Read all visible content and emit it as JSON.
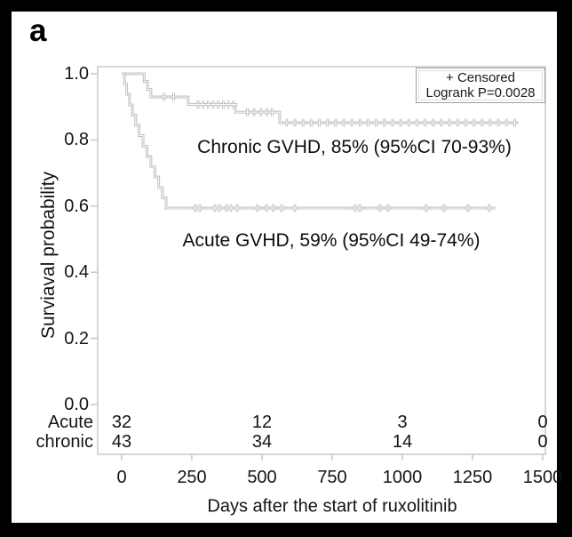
{
  "figure": {
    "panel_label": "a"
  },
  "chart_data": {
    "type": "line",
    "subtype": "kaplan-meier-survival",
    "title": "",
    "xlabel": "Days after the start of ruxolitinib",
    "ylabel": "Surviaval probability",
    "xlim": [
      0,
      1500
    ],
    "ylim": [
      0.0,
      1.0
    ],
    "grid": false,
    "x_ticks": [
      0,
      250,
      500,
      750,
      1000,
      1250,
      1500
    ],
    "y_ticks": [
      "0.0",
      "0.2",
      "0.4",
      "0.6",
      "0.8",
      "1.0"
    ],
    "legend": {
      "position": "top-right",
      "censored_label": "+ Censored",
      "logrank_label": "Logrank P=0.0028"
    },
    "colors": {
      "curve": "#b2b2b2",
      "curve_core": "#ffffff",
      "frame": "#c8c8c8",
      "text": "#141414"
    },
    "series": [
      {
        "name": "Chronic GVHD",
        "annotation": "Chronic GVHD, 85% (95%CI 70-93%)",
        "final_estimate": "85% (95%CI 70-93%)",
        "steps": [
          [
            0,
            1.0
          ],
          [
            80,
            0.977
          ],
          [
            92,
            0.953
          ],
          [
            104,
            0.93
          ],
          [
            237,
            0.907
          ],
          [
            405,
            0.884
          ],
          [
            563,
            0.852
          ]
        ],
        "end_day": 1410,
        "censor_days": [
          150,
          185,
          272,
          290,
          308,
          326,
          344,
          362,
          380,
          398,
          448,
          472,
          496,
          518,
          536,
          588,
          617,
          646,
          675,
          704,
          733,
          762,
          791,
          820,
          849,
          878,
          907,
          936,
          965,
          994,
          1023,
          1052,
          1081,
          1110,
          1139,
          1168,
          1197,
          1226,
          1255,
          1284,
          1313,
          1342,
          1371,
          1400
        ]
      },
      {
        "name": "Acute GVHD",
        "annotation": "Acute GVHD, 59% (95%CI 49-74%)",
        "final_estimate": "59% (95%CI 49-74%)",
        "steps": [
          [
            0,
            1.0
          ],
          [
            10,
            0.969
          ],
          [
            18,
            0.938
          ],
          [
            28,
            0.906
          ],
          [
            38,
            0.875
          ],
          [
            50,
            0.844
          ],
          [
            62,
            0.813
          ],
          [
            76,
            0.781
          ],
          [
            90,
            0.75
          ],
          [
            104,
            0.719
          ],
          [
            118,
            0.688
          ],
          [
            132,
            0.656
          ],
          [
            145,
            0.625
          ],
          [
            158,
            0.594
          ]
        ],
        "end_day": 1332,
        "censor_days": [
          263,
          278,
          332,
          348,
          373,
          389,
          411,
          484,
          516,
          541,
          570,
          617,
          832,
          848,
          921,
          949,
          1085,
          1149,
          1234,
          1310
        ]
      }
    ],
    "at_risk": {
      "time_points": [
        0,
        500,
        1000,
        1500
      ],
      "rows": [
        {
          "label": "Acute",
          "counts": [
            32,
            12,
            3,
            0
          ]
        },
        {
          "label": "chronic",
          "counts": [
            43,
            34,
            14,
            0
          ]
        }
      ]
    }
  }
}
